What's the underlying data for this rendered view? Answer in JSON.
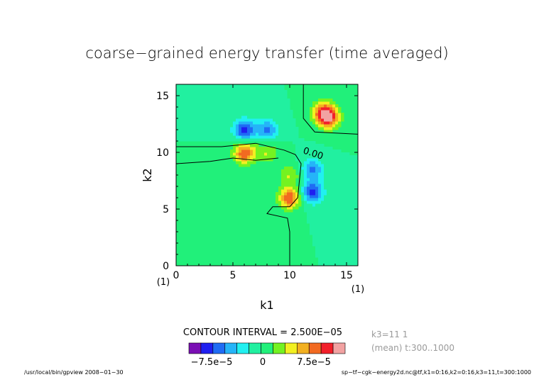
{
  "chart_data": {
    "type": "heatmap",
    "title": "coarse−grained energy transfer (time averaged)",
    "xlabel": "k1",
    "ylabel": "k2",
    "xlim": [
      0,
      16
    ],
    "ylim": [
      0,
      16
    ],
    "x_ticks": [
      "0",
      "5",
      "10",
      "15"
    ],
    "y_ticks": [
      "0",
      "5",
      "10",
      "15"
    ],
    "x_index_left": "(1)",
    "x_index_right": "(1)",
    "zero_label": "0.00",
    "contour_interval_text": "CONTOUR INTERVAL = 2.500E−05",
    "background_value": 0,
    "features": [
      {
        "k1": 13,
        "k2": 13.5,
        "value": 0.00013
      },
      {
        "k1": 13.5,
        "k2": 13,
        "value": 0.0001
      },
      {
        "k1": 6,
        "k2": 10,
        "value": 0.00012
      },
      {
        "k1": 10,
        "k2": 6,
        "value": 0.00012
      },
      {
        "k1": 6,
        "k2": 12,
        "value": -0.00011
      },
      {
        "k1": 8,
        "k2": 12,
        "value": -8e-05
      },
      {
        "k1": 12,
        "k2": 6.5,
        "value": -0.00011
      },
      {
        "k1": 12,
        "k2": 8.5,
        "value": -8e-05
      },
      {
        "k1": 8,
        "k2": 10,
        "value": 5e-05
      },
      {
        "k1": 10,
        "k2": 8,
        "value": 5e-05
      }
    ],
    "colorbar": {
      "levels": [
        -0.000125,
        -0.0001,
        -7.5e-05,
        -5e-05,
        -2.5e-05,
        0,
        2.5e-05,
        5e-05,
        7.5e-05,
        0.0001,
        0.000125,
        0.00015
      ],
      "colors": [
        "#7a0fb4",
        "#1f1ff0",
        "#1f6cf4",
        "#25b4f8",
        "#21f0f0",
        "#21f0a0",
        "#21f07a",
        "#74f221",
        "#f2f021",
        "#f2b021",
        "#f26a21",
        "#f21f2a",
        "#f2a2a2"
      ],
      "labels": [
        "−7.5e−5",
        "0",
        "7.5e−5"
      ]
    },
    "info_lines": [
      "k3=11 1",
      "(mean) t:300..1000"
    ]
  },
  "footer": {
    "left": "/usr/local/bin/gpview   2008−01−30",
    "right": "sp−tf−cgk−energy2d.nc@tf,k1=0:16,k2=0:16,k3=11,t=300:1000"
  }
}
